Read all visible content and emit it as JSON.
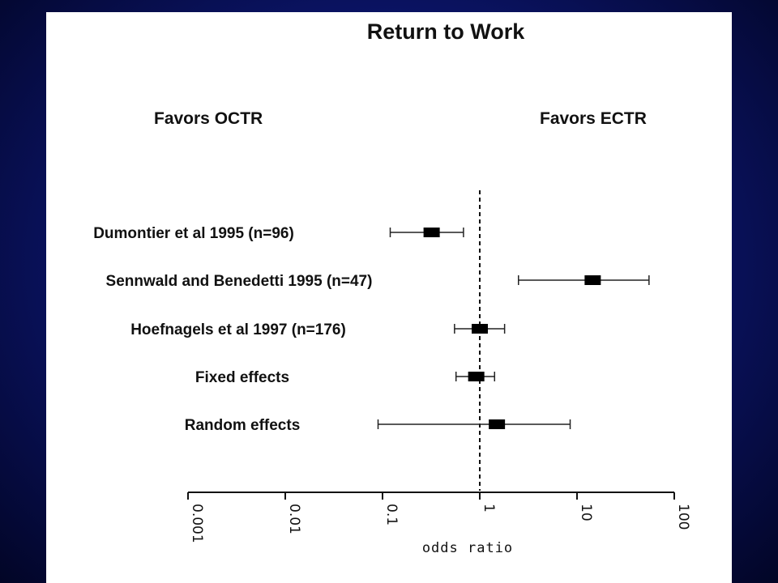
{
  "chart_data": {
    "type": "forest",
    "title": "Return to Work",
    "favors_left": "Favors OCTR",
    "favors_right": "Favors ECTR",
    "xlabel": "odds ratio",
    "x_scale": "log10",
    "xlim": [
      0.001,
      100
    ],
    "x_ticks": [
      "0.001",
      "0.01",
      "0.1",
      "1",
      "10",
      "100"
    ],
    "reference_line": 1,
    "rows": [
      {
        "label": "Dumontier et al 1995  (n=96)",
        "estimate": 0.32,
        "lower": 0.12,
        "upper": 0.68
      },
      {
        "label": "Sennwald and Benedetti 1995  (n=47)",
        "estimate": 14.5,
        "lower": 2.5,
        "upper": 55
      },
      {
        "label": "Hoefnagels et al 1997  (n=176)",
        "estimate": 1.0,
        "lower": 0.55,
        "upper": 1.8
      },
      {
        "label": "Fixed effects",
        "estimate": 0.92,
        "lower": 0.57,
        "upper": 1.42
      },
      {
        "label": "Random effects",
        "estimate": 1.5,
        "lower": 0.09,
        "upper": 8.5
      }
    ]
  }
}
